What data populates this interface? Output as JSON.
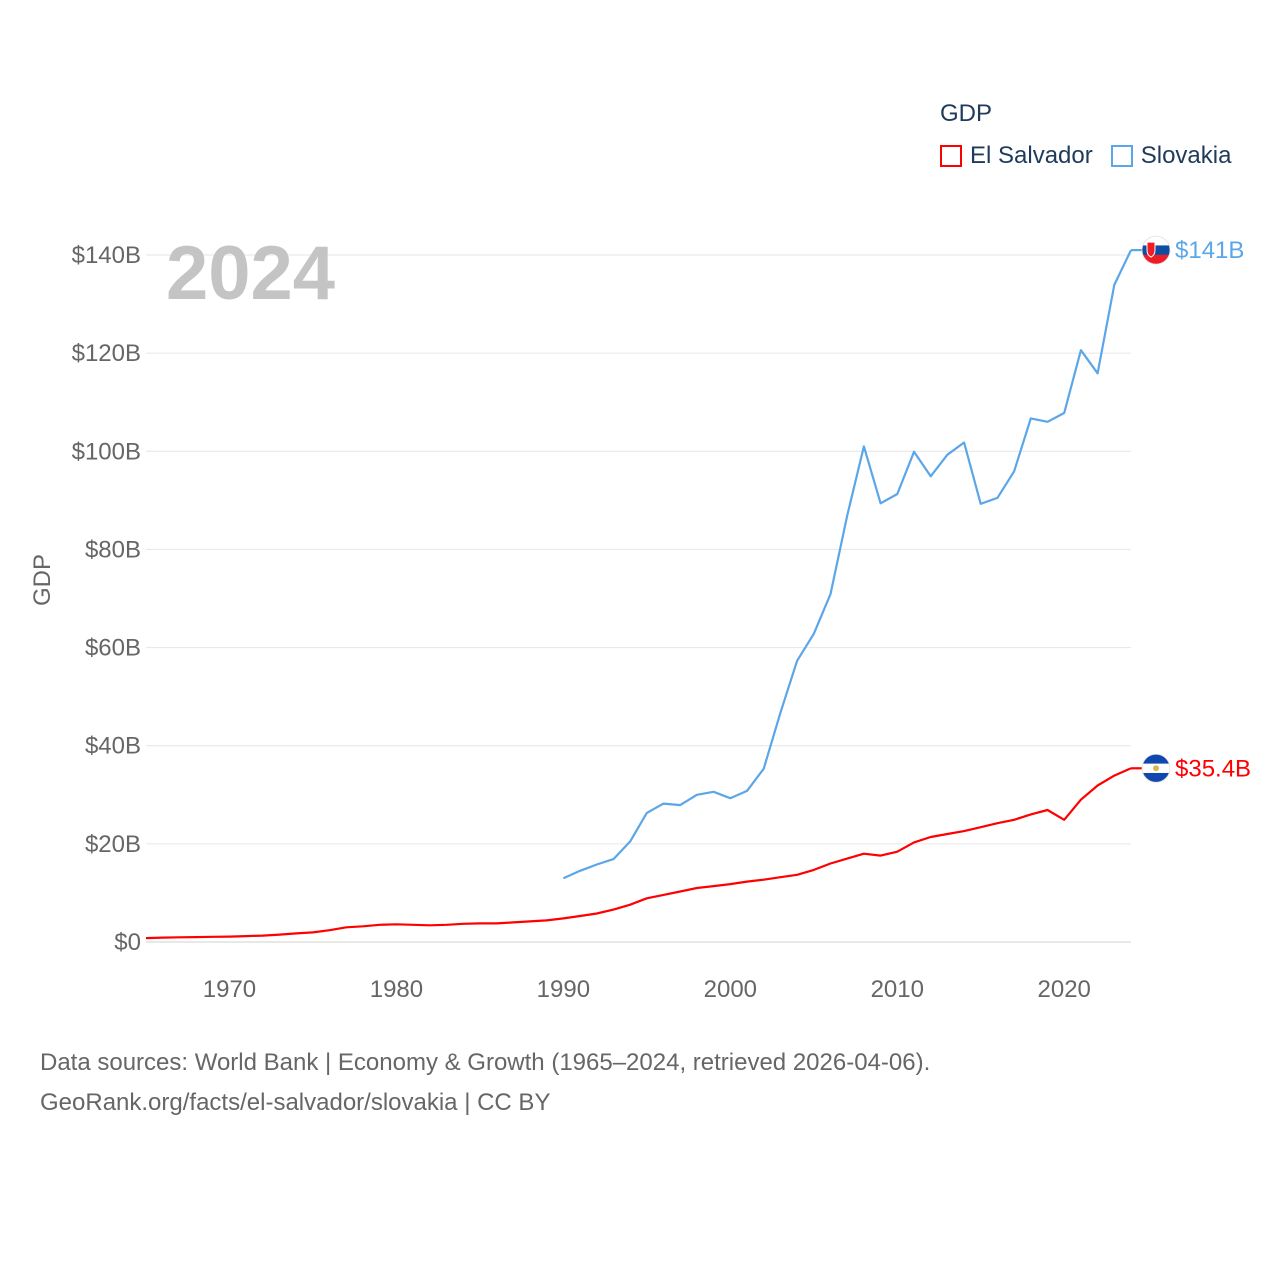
{
  "legend": {
    "title": "GDP",
    "items": [
      {
        "label": "El Salvador",
        "color": "#ff0000"
      },
      {
        "label": "Slovakia",
        "color": "#5ba6e8"
      }
    ]
  },
  "watermark_year": "2024",
  "source": {
    "line1": "Data sources: World Bank | Economy & Growth (1965–2024, retrieved 2026-04-06).",
    "line2": "GeoRank.org/facts/el-salvador/slovakia | CC BY"
  },
  "chart_data": {
    "type": "line",
    "title": "",
    "xlabel": "",
    "ylabel": "GDP",
    "xlim": [
      1965,
      2024
    ],
    "ylim": [
      0,
      140
    ],
    "x_ticks": [
      1970,
      1980,
      1990,
      2000,
      2010,
      2020
    ],
    "y_ticks": [
      0,
      20,
      40,
      60,
      80,
      100,
      120,
      140
    ],
    "y_tick_labels": [
      "$0",
      "$20B",
      "$40B",
      "$60B",
      "$80B",
      "$100B",
      "$120B",
      "$140B"
    ],
    "grid": true,
    "legend_position": "top-right",
    "series": [
      {
        "name": "El Salvador",
        "color": "#ff0000",
        "end_label": "$35.4B",
        "points": [
          [
            1965,
            0.8
          ],
          [
            1966,
            0.9
          ],
          [
            1967,
            0.95
          ],
          [
            1968,
            1.0
          ],
          [
            1969,
            1.05
          ],
          [
            1970,
            1.1
          ],
          [
            1971,
            1.2
          ],
          [
            1972,
            1.3
          ],
          [
            1973,
            1.5
          ],
          [
            1974,
            1.75
          ],
          [
            1975,
            1.95
          ],
          [
            1976,
            2.4
          ],
          [
            1977,
            3.0
          ],
          [
            1978,
            3.2
          ],
          [
            1979,
            3.5
          ],
          [
            1980,
            3.6
          ],
          [
            1981,
            3.5
          ],
          [
            1982,
            3.4
          ],
          [
            1983,
            3.5
          ],
          [
            1984,
            3.7
          ],
          [
            1985,
            3.8
          ],
          [
            1986,
            3.8
          ],
          [
            1987,
            4.0
          ],
          [
            1988,
            4.2
          ],
          [
            1989,
            4.4
          ],
          [
            1990,
            4.8
          ],
          [
            1991,
            5.3
          ],
          [
            1992,
            5.8
          ],
          [
            1993,
            6.6
          ],
          [
            1994,
            7.6
          ],
          [
            1995,
            8.9
          ],
          [
            1996,
            9.6
          ],
          [
            1997,
            10.3
          ],
          [
            1998,
            11.0
          ],
          [
            1999,
            11.4
          ],
          [
            2000,
            11.8
          ],
          [
            2001,
            12.3
          ],
          [
            2002,
            12.7
          ],
          [
            2003,
            13.2
          ],
          [
            2004,
            13.7
          ],
          [
            2005,
            14.7
          ],
          [
            2006,
            16.0
          ],
          [
            2007,
            17.0
          ],
          [
            2008,
            18.0
          ],
          [
            2009,
            17.6
          ],
          [
            2010,
            18.4
          ],
          [
            2011,
            20.3
          ],
          [
            2012,
            21.4
          ],
          [
            2013,
            22.0
          ],
          [
            2014,
            22.6
          ],
          [
            2015,
            23.4
          ],
          [
            2016,
            24.2
          ],
          [
            2017,
            24.9
          ],
          [
            2018,
            26.0
          ],
          [
            2019,
            26.9
          ],
          [
            2020,
            24.9
          ],
          [
            2021,
            29.0
          ],
          [
            2022,
            31.9
          ],
          [
            2023,
            33.9
          ],
          [
            2024,
            35.4
          ]
        ]
      },
      {
        "name": "Slovakia",
        "color": "#5ba6e8",
        "end_label": "$141B",
        "points": [
          [
            1990,
            13.0
          ],
          [
            1991,
            14.5
          ],
          [
            1992,
            15.8
          ],
          [
            1993,
            16.9
          ],
          [
            1994,
            20.5
          ],
          [
            1995,
            26.3
          ],
          [
            1996,
            28.2
          ],
          [
            1997,
            27.9
          ],
          [
            1998,
            30.0
          ],
          [
            1999,
            30.6
          ],
          [
            2000,
            29.3
          ],
          [
            2001,
            30.8
          ],
          [
            2002,
            35.3
          ],
          [
            2003,
            46.7
          ],
          [
            2004,
            57.3
          ],
          [
            2005,
            62.8
          ],
          [
            2006,
            70.9
          ],
          [
            2007,
            86.9
          ],
          [
            2008,
            101.0
          ],
          [
            2009,
            89.4
          ],
          [
            2010,
            91.3
          ],
          [
            2011,
            99.9
          ],
          [
            2012,
            94.9
          ],
          [
            2013,
            99.3
          ],
          [
            2014,
            101.8
          ],
          [
            2015,
            89.3
          ],
          [
            2016,
            90.5
          ],
          [
            2017,
            95.9
          ],
          [
            2018,
            106.7
          ],
          [
            2019,
            106.0
          ],
          [
            2020,
            107.8
          ],
          [
            2021,
            120.6
          ],
          [
            2022,
            115.9
          ],
          [
            2023,
            133.9
          ],
          [
            2024,
            141.0
          ]
        ]
      }
    ]
  }
}
